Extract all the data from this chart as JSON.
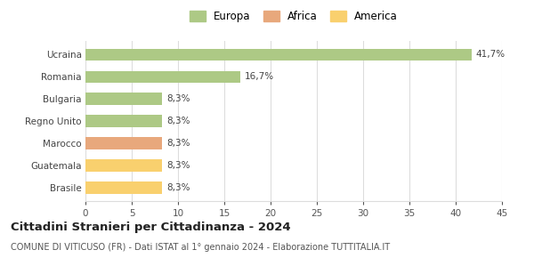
{
  "categories": [
    "Brasile",
    "Guatemala",
    "Marocco",
    "Regno Unito",
    "Bulgaria",
    "Romania",
    "Ucraina"
  ],
  "values": [
    8.3,
    8.3,
    8.3,
    8.3,
    8.3,
    16.7,
    41.7
  ],
  "labels": [
    "8,3%",
    "8,3%",
    "8,3%",
    "8,3%",
    "8,3%",
    "16,7%",
    "41,7%"
  ],
  "colors": [
    "#f9d06e",
    "#f9d06e",
    "#e8a87c",
    "#adc985",
    "#adc985",
    "#adc985",
    "#adc985"
  ],
  "legend": [
    {
      "label": "Europa",
      "color": "#adc985"
    },
    {
      "label": "Africa",
      "color": "#e8a87c"
    },
    {
      "label": "America",
      "color": "#f9d06e"
    }
  ],
  "xlim": [
    0,
    45
  ],
  "xticks": [
    0,
    5,
    10,
    15,
    20,
    25,
    30,
    35,
    40,
    45
  ],
  "title": "Cittadini Stranieri per Cittadinanza - 2024",
  "subtitle": "COMUNE DI VITICUSO (FR) - Dati ISTAT al 1° gennaio 2024 - Elaborazione TUTTITALIA.IT",
  "background_color": "#ffffff",
  "grid_color": "#dddddd",
  "bar_height": 0.55
}
